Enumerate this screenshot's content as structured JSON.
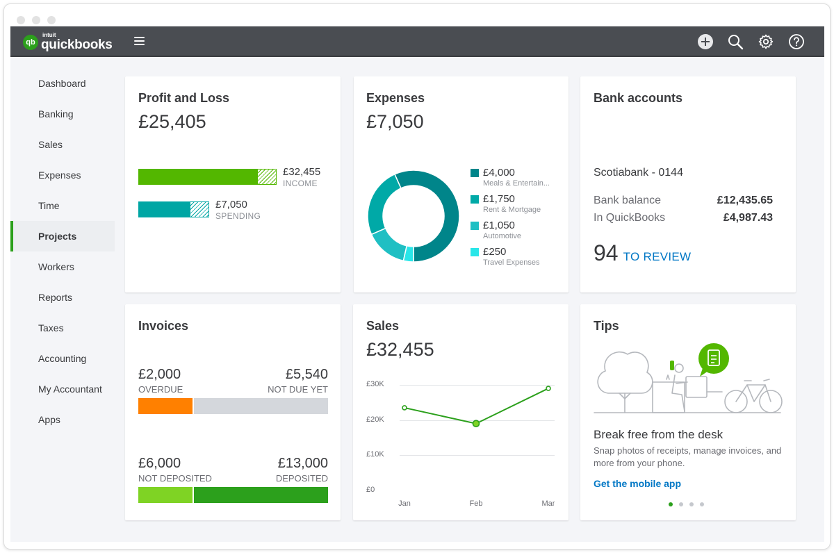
{
  "app": {
    "brand_small": "intuit",
    "brand": "quickbooks",
    "badge": "qb"
  },
  "topbar": {
    "icons": [
      "plus-circle-icon",
      "search-icon",
      "gear-icon",
      "help-icon"
    ]
  },
  "sidebar": {
    "items": [
      {
        "label": "Dashboard"
      },
      {
        "label": "Banking"
      },
      {
        "label": "Sales"
      },
      {
        "label": "Expenses"
      },
      {
        "label": "Time"
      },
      {
        "label": "Projects",
        "active": true
      },
      {
        "label": "Workers"
      },
      {
        "label": "Reports"
      },
      {
        "label": "Taxes"
      },
      {
        "label": "Accounting"
      },
      {
        "label": "My Accountant"
      },
      {
        "label": "Apps"
      }
    ]
  },
  "profit_loss": {
    "title": "Profit and Loss",
    "amount": "£25,405",
    "income": {
      "value": "£32,455",
      "label": "INCOME",
      "color": "#53b700"
    },
    "spending": {
      "value": "£7,050",
      "label": "SPENDING",
      "color": "#00a6a4"
    }
  },
  "expenses": {
    "title": "Expenses",
    "amount": "£7,050",
    "items": [
      {
        "value": "£4,000",
        "label": "Meals & Entertain...",
        "color": "#00858a"
      },
      {
        "value": "£1,750",
        "label": "Rent & Mortgage",
        "color": "#00a9a7"
      },
      {
        "value": "£1,050",
        "label": "Automotive",
        "color": "#1fbfc3"
      },
      {
        "value": "£250",
        "label": "Travel Expenses",
        "color": "#29e6e8"
      }
    ]
  },
  "bank": {
    "title": "Bank accounts",
    "account": "Scotiabank - 0144",
    "bank_balance_label": "Bank balance",
    "bank_balance": "£12,435.65",
    "qb_label": "In QuickBooks",
    "qb_balance": "£4,987.43",
    "review_count": "94",
    "review_label": "TO REVIEW"
  },
  "invoices": {
    "title": "Invoices",
    "overdue": {
      "value": "£2,000",
      "label": "OVERDUE",
      "color": "#ff8000"
    },
    "not_due": {
      "value": "£5,540",
      "label": "NOT DUE YET",
      "color": "#d4d7dc"
    },
    "not_deposited": {
      "value": "£6,000",
      "label": "NOT DEPOSITED",
      "color": "#7fd324"
    },
    "deposited": {
      "value": "£13,000",
      "label": "DEPOSITED",
      "color": "#2ca01c"
    }
  },
  "sales": {
    "title": "Sales",
    "amount": "£32,455"
  },
  "chart_data": {
    "type": "line",
    "x": [
      "Jan",
      "Feb",
      "Mar"
    ],
    "series": [
      {
        "values": [
          23500,
          19000,
          29000
        ],
        "color": "#2ca01c"
      }
    ],
    "y_ticks": [
      "£30K",
      "£20K",
      "£10K",
      "£0"
    ],
    "ylim": [
      0,
      30000
    ],
    "grid": true
  },
  "tips": {
    "title": "Tips",
    "heading": "Break free from the desk",
    "body": "Snap photos of receipts, manage invoices, and more from your phone.",
    "link": "Get the mobile app",
    "page_count": 4,
    "active_page": 0
  }
}
